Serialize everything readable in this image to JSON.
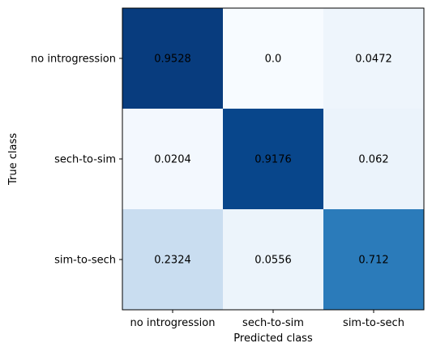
{
  "chart_data": {
    "type": "heatmap",
    "xlabel": "Predicted class",
    "ylabel": "True class",
    "x_categories": [
      "no introgression",
      "sech-to-sim",
      "sim-to-sech"
    ],
    "y_categories": [
      "no introgression",
      "sech-to-sim",
      "sim-to-sech"
    ],
    "values": [
      [
        0.9528,
        0.0,
        0.0472
      ],
      [
        0.0204,
        0.9176,
        0.062
      ],
      [
        0.2324,
        0.0556,
        0.712
      ]
    ],
    "cell_labels": [
      [
        "0.9528",
        "0.0",
        "0.0472"
      ],
      [
        "0.0204",
        "0.9176",
        "0.062"
      ],
      [
        "0.2324",
        "0.0556",
        "0.712"
      ]
    ],
    "colormap": "Blues",
    "value_range": [
      0,
      1
    ]
  }
}
